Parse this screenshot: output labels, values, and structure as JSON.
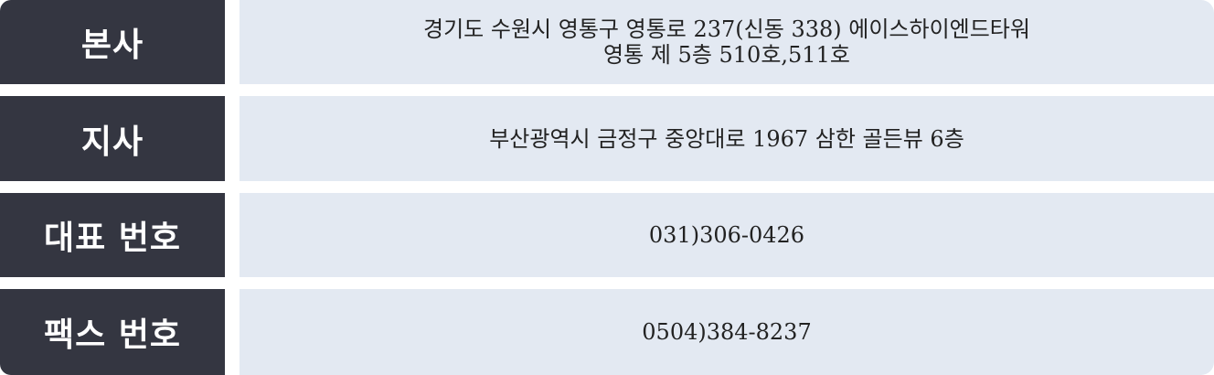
{
  "colors": {
    "label_background": "#343641",
    "label_text": "#ffffff",
    "value_background": "#e3e9f2",
    "value_text": "#222222"
  },
  "rows": [
    {
      "label": "본사",
      "lines": [
        "경기도 수원시 영통구 영통로 237(신동 338) 에이스하이엔드타워",
        "영통 제 5층 510호,511호"
      ]
    },
    {
      "label": "지사",
      "lines": [
        "부산광역시 금정구 중앙대로 1967 삼한 골든뷰 6층"
      ]
    },
    {
      "label": "대표 번호",
      "lines": [
        "031)306-0426"
      ]
    },
    {
      "label": "팩스 번호",
      "lines": [
        "0504)384-8237"
      ]
    }
  ]
}
